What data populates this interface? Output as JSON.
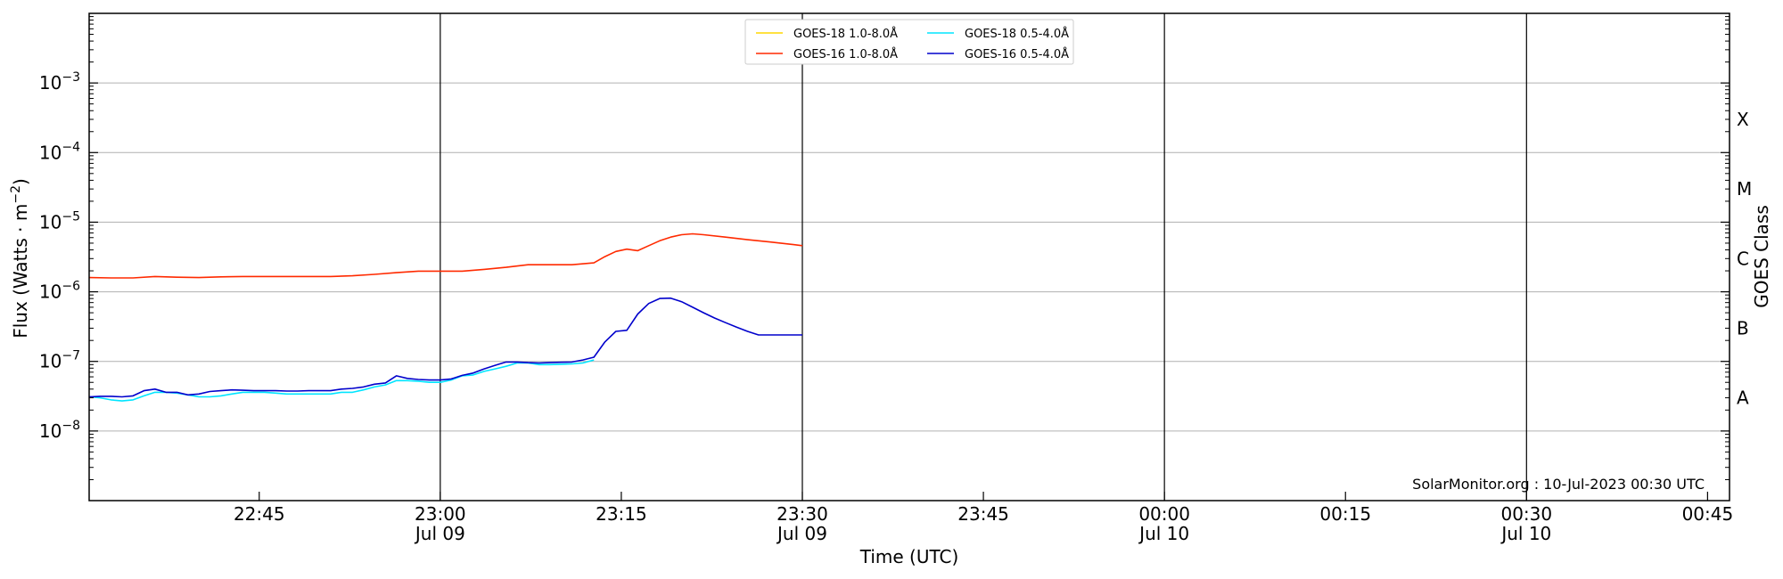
{
  "chart_data": {
    "type": "line",
    "xlabel": "Time (UTC)",
    "ylabel": "Flux (Watts · m",
    "ylabel_sup": "−2",
    "ylabel_close": ")",
    "right_label": "GOES Class",
    "credit": "SolarMonitor.org : 10-Jul-2023 00:30 UTC",
    "x_unit": "minutes since 22:16 UTC, 09-Jul-2023",
    "x_range": [
      0,
      149.5
    ],
    "y_scale": "log",
    "y_range": [
      1e-09,
      0.01
    ],
    "grid": "horizontal at decades",
    "legend_position": "top-center",
    "x_ticks": [
      {
        "x": 15.5,
        "line1": "22:45",
        "line2": ""
      },
      {
        "x": 32,
        "line1": "23:00",
        "line2": "Jul 09"
      },
      {
        "x": 48.5,
        "line1": "23:15",
        "line2": ""
      },
      {
        "x": 65,
        "line1": "23:30",
        "line2": "Jul 09"
      },
      {
        "x": 81.5,
        "line1": "23:45",
        "line2": ""
      },
      {
        "x": 98,
        "line1": "00:00",
        "line2": "Jul 10"
      },
      {
        "x": 114.5,
        "line1": "00:15",
        "line2": ""
      },
      {
        "x": 131,
        "line1": "00:30",
        "line2": "Jul 10"
      },
      {
        "x": 147.5,
        "line1": "00:45",
        "line2": ""
      }
    ],
    "vertical_lines": [
      32,
      65,
      98,
      131
    ],
    "y_ticks": [
      {
        "exp": -3,
        "value": 0.001
      },
      {
        "exp": -4,
        "value": 0.0001
      },
      {
        "exp": -5,
        "value": 1e-05
      },
      {
        "exp": -6,
        "value": 1e-06
      },
      {
        "exp": -7,
        "value": 1e-07
      },
      {
        "exp": -8,
        "value": 1e-08
      }
    ],
    "classes": [
      {
        "label": "X",
        "value": 0.0003
      },
      {
        "label": "M",
        "value": 3e-05
      },
      {
        "label": "C",
        "value": 3e-06
      },
      {
        "label": "B",
        "value": 3e-07
      },
      {
        "label": "A",
        "value": 3e-08
      }
    ],
    "legend": [
      {
        "name": "GOES-18 1.0-8.0Å",
        "color": "#ffd700"
      },
      {
        "name": "GOES-18 0.5-4.0Å",
        "color": "#00e5ff"
      },
      {
        "name": "GOES-16 1.0-8.0Å",
        "color": "#ff2a00"
      },
      {
        "name": "GOES-16 0.5-4.0Å",
        "color": "#0000cc"
      }
    ],
    "series": [
      {
        "name": "GOES-16 1.0-8.0Å",
        "color": "#ff2a00",
        "x": [
          0,
          2,
          4,
          6,
          8,
          10,
          12,
          14,
          16,
          18,
          20,
          22,
          24,
          26,
          28,
          30,
          32,
          34,
          36,
          38,
          40,
          42,
          44,
          46,
          47,
          48,
          49,
          50,
          51,
          52,
          53,
          54,
          55,
          56,
          58,
          60,
          62,
          64,
          65
        ],
        "values": [
          1.6e-06,
          1.58e-06,
          1.58e-06,
          1.66e-06,
          1.62e-06,
          1.6e-06,
          1.64e-06,
          1.66e-06,
          1.66e-06,
          1.66e-06,
          1.66e-06,
          1.66e-06,
          1.7e-06,
          1.78e-06,
          1.88e-06,
          1.98e-06,
          1.98e-06,
          1.98e-06,
          2.1e-06,
          2.25e-06,
          2.45e-06,
          2.45e-06,
          2.45e-06,
          2.6e-06,
          3.2e-06,
          3.8e-06,
          4.1e-06,
          3.9e-06,
          4.6e-06,
          5.4e-06,
          6.1e-06,
          6.6e-06,
          6.8e-06,
          6.6e-06,
          6.1e-06,
          5.6e-06,
          5.2e-06,
          4.8e-06,
          4.6e-06
        ]
      },
      {
        "name": "GOES-18 0.5-4.0Å",
        "color": "#00e5ff",
        "x": [
          0,
          1,
          2,
          3,
          4,
          5,
          6,
          7,
          8,
          9,
          10,
          11,
          12,
          13,
          14,
          15,
          16,
          17,
          18,
          19,
          20,
          21,
          22,
          23,
          24,
          25,
          26,
          27,
          28,
          29,
          30,
          31,
          32,
          33,
          34,
          35,
          36,
          37,
          38,
          39,
          40,
          41,
          42,
          43,
          44,
          45,
          46
        ],
        "values": [
          3.1e-08,
          3e-08,
          2.8e-08,
          2.7e-08,
          2.8e-08,
          3.2e-08,
          3.6e-08,
          3.6e-08,
          3.5e-08,
          3.3e-08,
          3.1e-08,
          3.1e-08,
          3.2e-08,
          3.4e-08,
          3.6e-08,
          3.6e-08,
          3.6e-08,
          3.5e-08,
          3.4e-08,
          3.4e-08,
          3.4e-08,
          3.4e-08,
          3.4e-08,
          3.6e-08,
          3.6e-08,
          3.9e-08,
          4.3e-08,
          4.6e-08,
          5.3e-08,
          5.3e-08,
          5.2e-08,
          5e-08,
          5e-08,
          5.4e-08,
          6.2e-08,
          6.4e-08,
          7.2e-08,
          7.8e-08,
          8.5e-08,
          9.5e-08,
          9.5e-08,
          9e-08,
          9e-08,
          9.1e-08,
          9.2e-08,
          9.5e-08,
          1.05e-07
        ]
      },
      {
        "name": "GOES-16 0.5-4.0Å",
        "color": "#0000cc",
        "x": [
          0,
          1,
          2,
          3,
          4,
          5,
          6,
          7,
          8,
          9,
          10,
          11,
          12,
          13,
          14,
          15,
          16,
          17,
          18,
          19,
          20,
          21,
          22,
          23,
          24,
          25,
          26,
          27,
          28,
          29,
          30,
          31,
          32,
          33,
          34,
          35,
          36,
          37,
          38,
          39,
          40,
          41,
          42,
          43,
          44,
          45,
          46,
          47,
          48,
          49,
          50,
          51,
          52,
          53,
          54,
          55,
          56,
          57,
          58,
          59,
          60,
          61,
          62,
          63,
          64,
          65
        ],
        "values": [
          3.1e-08,
          3.15e-08,
          3.15e-08,
          3.1e-08,
          3.2e-08,
          3.8e-08,
          4e-08,
          3.6e-08,
          3.6e-08,
          3.3e-08,
          3.4e-08,
          3.7e-08,
          3.8e-08,
          3.9e-08,
          3.85e-08,
          3.8e-08,
          3.8e-08,
          3.8e-08,
          3.75e-08,
          3.75e-08,
          3.8e-08,
          3.8e-08,
          3.8e-08,
          4e-08,
          4.1e-08,
          4.3e-08,
          4.7e-08,
          4.9e-08,
          6.2e-08,
          5.7e-08,
          5.5e-08,
          5.4e-08,
          5.4e-08,
          5.6e-08,
          6.3e-08,
          6.8e-08,
          7.8e-08,
          8.8e-08,
          9.8e-08,
          9.8e-08,
          9.6e-08,
          9.5e-08,
          9.6e-08,
          9.7e-08,
          9.8e-08,
          1.05e-07,
          1.15e-07,
          1.9e-07,
          2.7e-07,
          2.8e-07,
          4.8e-07,
          6.8e-07,
          8e-07,
          8.1e-07,
          7.2e-07,
          6e-07,
          5e-07,
          4.2e-07,
          3.6e-07,
          3.1e-07,
          2.7e-07,
          2.4e-07,
          2.4e-07,
          2.4e-07,
          2.4e-07,
          2.4e-07
        ]
      }
    ]
  }
}
